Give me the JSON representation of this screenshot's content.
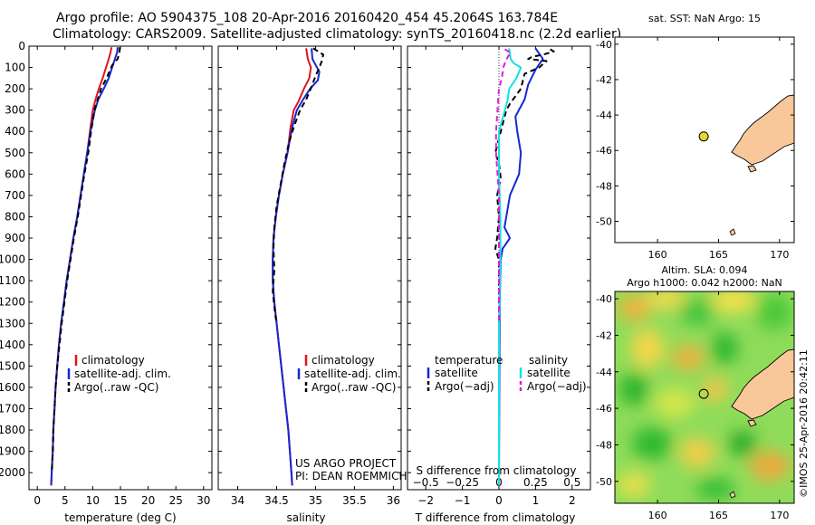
{
  "header": {
    "line1": "Argo profile: AO 5904375_108 20-Apr-2016 20160420_454 45.2064S 163.784E",
    "line2": "Climatology: CARS2009. Satellite-adjusted climatology: synTS_20160418.nc (2.2d earlier)"
  },
  "colors": {
    "climatology": "#e0141e",
    "satellite": "#1428d2",
    "argo": "#000000",
    "salinity_satellite": "#16e0e0",
    "salinity_argo": "#e01ce0",
    "land": "#f8c79a",
    "float": "#e8d82c"
  },
  "chart_data": [
    {
      "name": "temperature-profile",
      "type": "line",
      "xlabel": "temperature (deg C)",
      "xlim": [
        -1.5,
        31.5
      ],
      "xticks": [
        0,
        5,
        10,
        15,
        20,
        25,
        30
      ],
      "ylim": [
        0,
        2080
      ],
      "yticks": [
        0,
        100,
        200,
        300,
        400,
        500,
        600,
        700,
        800,
        900,
        1000,
        1100,
        1200,
        1300,
        1400,
        1500,
        1600,
        1700,
        1800,
        1900,
        2000
      ],
      "legend": [
        "climatology",
        "satellite-adj. clim.",
        "Argo(..raw -QC)"
      ],
      "series": [
        {
          "name": "climatology",
          "style": "solid",
          "color": "climatology",
          "points": [
            [
              13.4,
              5
            ],
            [
              13.2,
              30
            ],
            [
              12.9,
              60
            ],
            [
              12.4,
              100
            ],
            [
              11.8,
              150
            ],
            [
              11.1,
              200
            ],
            [
              10.5,
              250
            ],
            [
              10.0,
              300
            ],
            [
              9.5,
              400
            ],
            [
              9.0,
              500
            ],
            [
              8.4,
              600
            ],
            [
              7.8,
              700
            ],
            [
              7.2,
              800
            ],
            [
              6.5,
              900
            ],
            [
              5.9,
              1000
            ],
            [
              5.3,
              1100
            ],
            [
              4.8,
              1200
            ],
            [
              4.3,
              1300
            ],
            [
              3.9,
              1400
            ],
            [
              3.6,
              1500
            ],
            [
              3.3,
              1600
            ],
            [
              3.1,
              1700
            ],
            [
              2.9,
              1800
            ],
            [
              2.8,
              1900
            ],
            [
              2.6,
              2000
            ],
            [
              2.5,
              2060
            ]
          ]
        },
        {
          "name": "satellite-adj. clim.",
          "style": "solid",
          "color": "satellite",
          "points": [
            [
              14.5,
              5
            ],
            [
              14.4,
              30
            ],
            [
              14.0,
              60
            ],
            [
              13.5,
              100
            ],
            [
              12.9,
              150
            ],
            [
              12.0,
              200
            ],
            [
              11.0,
              250
            ],
            [
              10.4,
              300
            ],
            [
              9.6,
              400
            ],
            [
              9.0,
              500
            ],
            [
              8.4,
              600
            ],
            [
              7.8,
              700
            ],
            [
              7.2,
              800
            ],
            [
              6.5,
              900
            ],
            [
              5.9,
              1000
            ],
            [
              5.3,
              1100
            ],
            [
              4.8,
              1200
            ],
            [
              4.3,
              1300
            ],
            [
              3.9,
              1400
            ],
            [
              3.6,
              1500
            ],
            [
              3.3,
              1600
            ],
            [
              3.1,
              1700
            ],
            [
              2.9,
              1800
            ],
            [
              2.8,
              1900
            ],
            [
              2.6,
              2000
            ],
            [
              2.5,
              2060
            ]
          ]
        },
        {
          "name": "Argo(..raw -QC)",
          "style": "dashed",
          "color": "argo",
          "points": [
            [
              14.9,
              5
            ],
            [
              14.8,
              30
            ],
            [
              14.5,
              60
            ],
            [
              13.5,
              90
            ],
            [
              12.5,
              150
            ],
            [
              11.5,
              200
            ],
            [
              10.9,
              250
            ],
            [
              10.3,
              300
            ],
            [
              9.7,
              400
            ],
            [
              9.2,
              500
            ],
            [
              8.5,
              600
            ],
            [
              7.9,
              700
            ],
            [
              7.3,
              800
            ],
            [
              6.6,
              900
            ],
            [
              6.0,
              1000
            ],
            [
              5.4,
              1100
            ],
            [
              4.9,
              1200
            ],
            [
              4.4,
              1300
            ],
            [
              4.0,
              1400
            ],
            [
              3.6,
              1500
            ],
            [
              3.3,
              1600
            ],
            [
              3.1,
              1700
            ],
            [
              2.9,
              1800
            ],
            [
              2.8,
              1900
            ],
            [
              2.6,
              2000
            ]
          ]
        }
      ]
    },
    {
      "name": "salinity-profile",
      "type": "line",
      "xlabel": "salinity",
      "xlim": [
        33.75,
        36.1
      ],
      "xticks": [
        34,
        34.5,
        35,
        35.5,
        36
      ],
      "xtick_labels": [
        "34",
        "34.5",
        "35",
        "35.5",
        "36"
      ],
      "ylim": [
        0,
        2080
      ],
      "legend": [
        "climatology",
        "satellite-adj. clim.",
        "Argo(..raw -QC)"
      ],
      "credit_line1": "US ARGO PROJECT",
      "credit_line2": "PI: DEAN ROEMMICH",
      "series": [
        {
          "name": "climatology",
          "style": "solid",
          "color": "climatology",
          "points": [
            [
              34.88,
              10
            ],
            [
              34.9,
              60
            ],
            [
              34.94,
              100
            ],
            [
              34.92,
              150
            ],
            [
              34.85,
              200
            ],
            [
              34.78,
              260
            ],
            [
              34.72,
              300
            ],
            [
              34.68,
              380
            ],
            [
              34.64,
              500
            ],
            [
              34.58,
              600
            ],
            [
              34.53,
              700
            ],
            [
              34.49,
              800
            ],
            [
              34.46,
              900
            ],
            [
              34.45,
              1000
            ],
            [
              34.45,
              1100
            ],
            [
              34.47,
              1200
            ],
            [
              34.5,
              1300
            ],
            [
              34.53,
              1400
            ],
            [
              34.56,
              1500
            ],
            [
              34.59,
              1600
            ],
            [
              34.62,
              1700
            ],
            [
              34.65,
              1800
            ],
            [
              34.67,
              1900
            ],
            [
              34.69,
              2000
            ],
            [
              34.7,
              2060
            ]
          ]
        },
        {
          "name": "satellite-adj. clim.",
          "style": "solid",
          "color": "satellite",
          "points": [
            [
              34.95,
              10
            ],
            [
              34.96,
              60
            ],
            [
              35.05,
              120
            ],
            [
              35.03,
              160
            ],
            [
              34.93,
              200
            ],
            [
              34.84,
              250
            ],
            [
              34.76,
              300
            ],
            [
              34.7,
              380
            ],
            [
              34.64,
              500
            ],
            [
              34.58,
              600
            ],
            [
              34.53,
              700
            ],
            [
              34.49,
              800
            ],
            [
              34.46,
              900
            ],
            [
              34.45,
              1000
            ],
            [
              34.45,
              1100
            ],
            [
              34.47,
              1200
            ],
            [
              34.5,
              1300
            ],
            [
              34.53,
              1400
            ],
            [
              34.56,
              1500
            ],
            [
              34.59,
              1600
            ],
            [
              34.62,
              1700
            ],
            [
              34.65,
              1800
            ],
            [
              34.67,
              1900
            ],
            [
              34.69,
              2000
            ],
            [
              34.7,
              2060
            ]
          ]
        },
        {
          "name": "Argo(..raw -QC)",
          "style": "dashed",
          "color": "argo",
          "points": [
            [
              34.97,
              10
            ],
            [
              35.1,
              40
            ],
            [
              35.08,
              70
            ],
            [
              35.05,
              100
            ],
            [
              35.0,
              140
            ],
            [
              34.95,
              190
            ],
            [
              34.88,
              250
            ],
            [
              34.8,
              300
            ],
            [
              34.72,
              380
            ],
            [
              34.66,
              450
            ],
            [
              34.6,
              550
            ],
            [
              34.55,
              650
            ],
            [
              34.5,
              750
            ],
            [
              34.47,
              850
            ],
            [
              34.46,
              950
            ],
            [
              34.47,
              1050
            ],
            [
              34.45,
              1150
            ],
            [
              34.48,
              1250
            ],
            [
              34.5,
              1300
            ]
          ]
        }
      ]
    },
    {
      "name": "difference-profile",
      "type": "line",
      "xlabel": "T difference from climatology",
      "xlim": [
        -2.5,
        2.5
      ],
      "xticks": [
        -2,
        -1,
        0,
        1,
        2
      ],
      "xtick_labels": [
        "−2",
        "−1",
        "0",
        "1",
        "2"
      ],
      "top_label": "S difference from climatology",
      "top_ticks": [
        -0.5,
        -0.25,
        0,
        0.25,
        0.5
      ],
      "top_tick_labels": [
        "−0.5",
        "−0.25",
        "0",
        "0.25",
        "0.5"
      ],
      "ylim": [
        0,
        2080
      ],
      "legend_headers": [
        "temperature",
        "salinity"
      ],
      "legend": [
        "satellite",
        "Argo(−adj)",
        "satellite",
        "Argo(−adj)"
      ],
      "series": [
        {
          "name": "temperature satellite",
          "style": "solid",
          "color": "satellite",
          "points": [
            [
              1.0,
              10
            ],
            [
              1.2,
              60
            ],
            [
              1.0,
              110
            ],
            [
              0.8,
              180
            ],
            [
              0.7,
              250
            ],
            [
              0.45,
              330
            ],
            [
              0.5,
              400
            ],
            [
              0.6,
              500
            ],
            [
              0.55,
              600
            ],
            [
              0.3,
              700
            ],
            [
              0.2,
              800
            ],
            [
              0.15,
              850
            ],
            [
              0.3,
              900
            ],
            [
              0.1,
              950
            ],
            [
              0.05,
              1000
            ],
            [
              0.02,
              1200
            ],
            [
              0.0,
              2060
            ]
          ]
        },
        {
          "name": "temperature Argo(-adj)",
          "style": "dashed",
          "color": "argo",
          "points": [
            [
              1.4,
              15
            ],
            [
              1.5,
              25
            ],
            [
              1.2,
              40
            ],
            [
              0.9,
              50
            ],
            [
              0.8,
              60
            ],
            [
              1.3,
              70
            ],
            [
              1.1,
              100
            ],
            [
              0.7,
              130
            ],
            [
              0.6,
              200
            ],
            [
              0.3,
              270
            ],
            [
              0.2,
              300
            ],
            [
              0.05,
              400
            ],
            [
              -0.1,
              500
            ],
            [
              0.0,
              550
            ],
            [
              0.05,
              620
            ],
            [
              -0.05,
              700
            ],
            [
              0.0,
              800
            ],
            [
              -0.05,
              900
            ],
            [
              -0.1,
              950
            ],
            [
              0.0,
              1000
            ],
            [
              0.0,
              1200
            ],
            [
              0.0,
              1300
            ]
          ]
        },
        {
          "name": "salinity satellite",
          "style": "solid",
          "color": "salinity_satellite",
          "points": [
            [
              0.07,
              10
            ],
            [
              0.08,
              60
            ],
            [
              0.1,
              80
            ],
            [
              0.15,
              100
            ],
            [
              0.12,
              150
            ],
            [
              0.07,
              200
            ],
            [
              0.06,
              250
            ],
            [
              0.04,
              300
            ],
            [
              0.0,
              400
            ],
            [
              0.0,
              500
            ],
            [
              0.0,
              600
            ],
            [
              0.01,
              800
            ],
            [
              0.01,
              1000
            ],
            [
              0.0,
              1300
            ],
            [
              0.0,
              2060
            ]
          ]
        },
        {
          "name": "salinity Argo(-adj)",
          "style": "dashed",
          "color": "salinity_argo",
          "points": [
            [
              0.04,
              15
            ],
            [
              0.08,
              30
            ],
            [
              0.06,
              50
            ],
            [
              0.04,
              80
            ],
            [
              0.03,
              100
            ],
            [
              0.02,
              150
            ],
            [
              0.0,
              200
            ],
            [
              -0.01,
              300
            ],
            [
              -0.02,
              400
            ],
            [
              -0.02,
              500
            ],
            [
              -0.01,
              600
            ],
            [
              0.0,
              700
            ],
            [
              0.0,
              800
            ],
            [
              0.0,
              1000
            ],
            [
              0.0,
              1300
            ]
          ]
        }
      ]
    },
    {
      "name": "sst-map",
      "type": "map",
      "title": "sat. SST: NaN Argo: 15",
      "xlim": [
        156.5,
        171.2
      ],
      "ylim": [
        -51.2,
        -39.6
      ],
      "xticks": [
        160,
        165,
        170
      ],
      "yticks": [
        -40,
        -42,
        -44,
        -46,
        -48,
        -50
      ],
      "float_lon": 163.784,
      "float_lat": -45.2064
    },
    {
      "name": "sla-map",
      "type": "map",
      "title_line1": "Altim. SLA: 0.094",
      "title_line2": "Argo h1000: 0.042 h2000: NaN",
      "xlim": [
        156.5,
        171.2
      ],
      "ylim": [
        -51.2,
        -39.6
      ],
      "xticks": [
        160,
        165,
        170
      ],
      "yticks": [
        -40,
        -42,
        -44,
        -46,
        -48,
        -50
      ],
      "float_lon": 163.784,
      "float_lat": -45.2064,
      "credit": "©IMOS 25-Apr-2016 20:42:11"
    }
  ]
}
